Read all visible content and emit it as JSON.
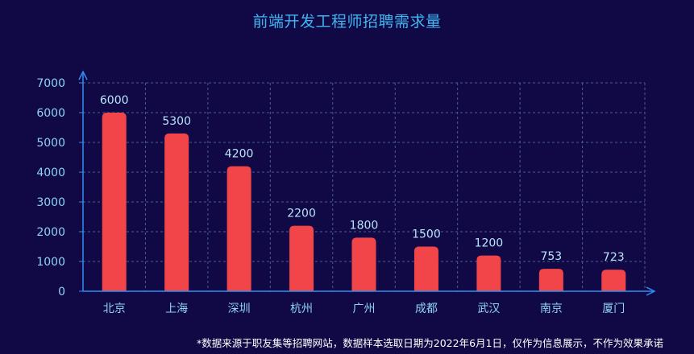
{
  "chart_data": {
    "type": "bar",
    "title": "前端开发工程师招聘需求量",
    "categories": [
      "北京",
      "上海",
      "深圳",
      "杭州",
      "广州",
      "成都",
      "武汉",
      "南京",
      "厦门"
    ],
    "values": [
      6000,
      5300,
      4200,
      2200,
      1800,
      1500,
      1200,
      753,
      723
    ],
    "ylim": [
      0,
      7000
    ],
    "yticks": [
      0,
      1000,
      2000,
      3000,
      4000,
      5000,
      6000,
      7000
    ],
    "grid": true,
    "legend": "none",
    "colors": {
      "background": "#110946",
      "bar": "#f24549",
      "axis": "#2f8ff0",
      "grid": "#4a5f8c",
      "title": "#3fb6f0",
      "label": "#8fd2f7"
    }
  },
  "footnote": "*数据来源于职友集等招聘网站，数据样本选取日期为2022年6月1日，仅作为信息展示，不作为效果承诺"
}
